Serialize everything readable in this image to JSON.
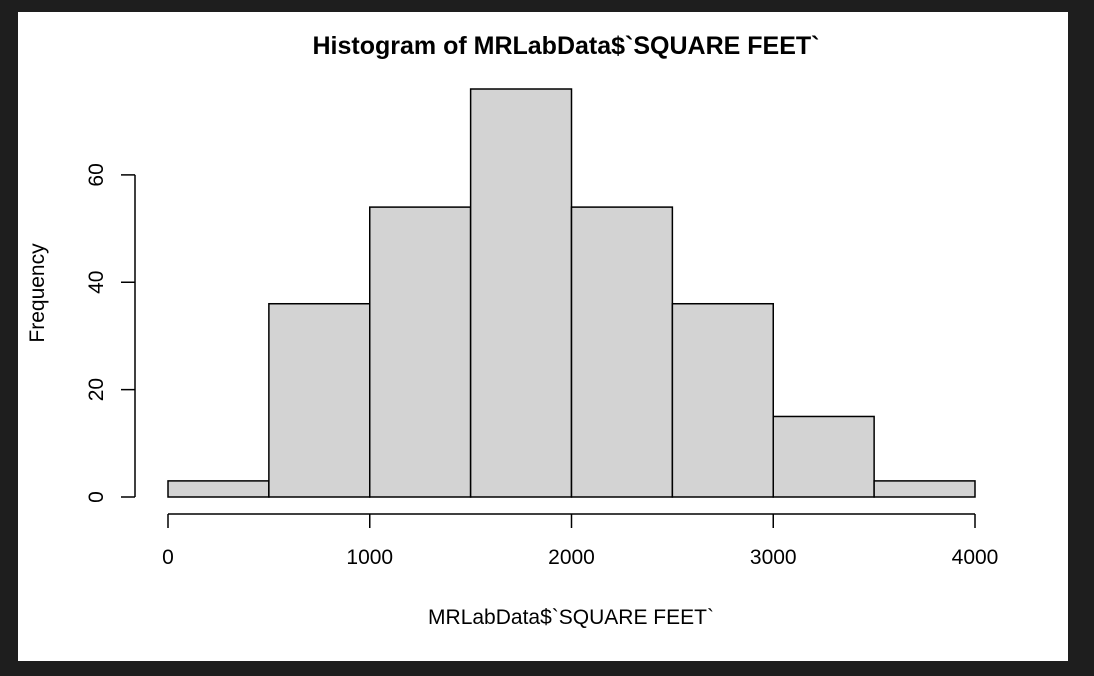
{
  "chart_data": {
    "type": "histogram",
    "title": "Histogram of MRLabData$`SQUARE FEET`",
    "xlabel": "MRLabData$`SQUARE FEET`",
    "ylabel": "Frequency",
    "bins": [
      {
        "start": 0,
        "end": 500,
        "count": 3
      },
      {
        "start": 500,
        "end": 1000,
        "count": 36
      },
      {
        "start": 1000,
        "end": 1500,
        "count": 54
      },
      {
        "start": 1500,
        "end": 2000,
        "count": 76
      },
      {
        "start": 2000,
        "end": 2500,
        "count": 54
      },
      {
        "start": 2500,
        "end": 3000,
        "count": 36
      },
      {
        "start": 3000,
        "end": 3500,
        "count": 15
      },
      {
        "start": 3500,
        "end": 4000,
        "count": 3
      }
    ],
    "xlim": [
      0,
      4000
    ],
    "ylim": [
      0,
      76
    ],
    "x_ticks": [
      0,
      1000,
      2000,
      3000,
      4000
    ],
    "y_ticks": [
      0,
      20,
      40,
      60
    ],
    "bar_fill": "#d3d3d3",
    "bar_stroke": "#000000",
    "grid": false,
    "legend": "none"
  }
}
